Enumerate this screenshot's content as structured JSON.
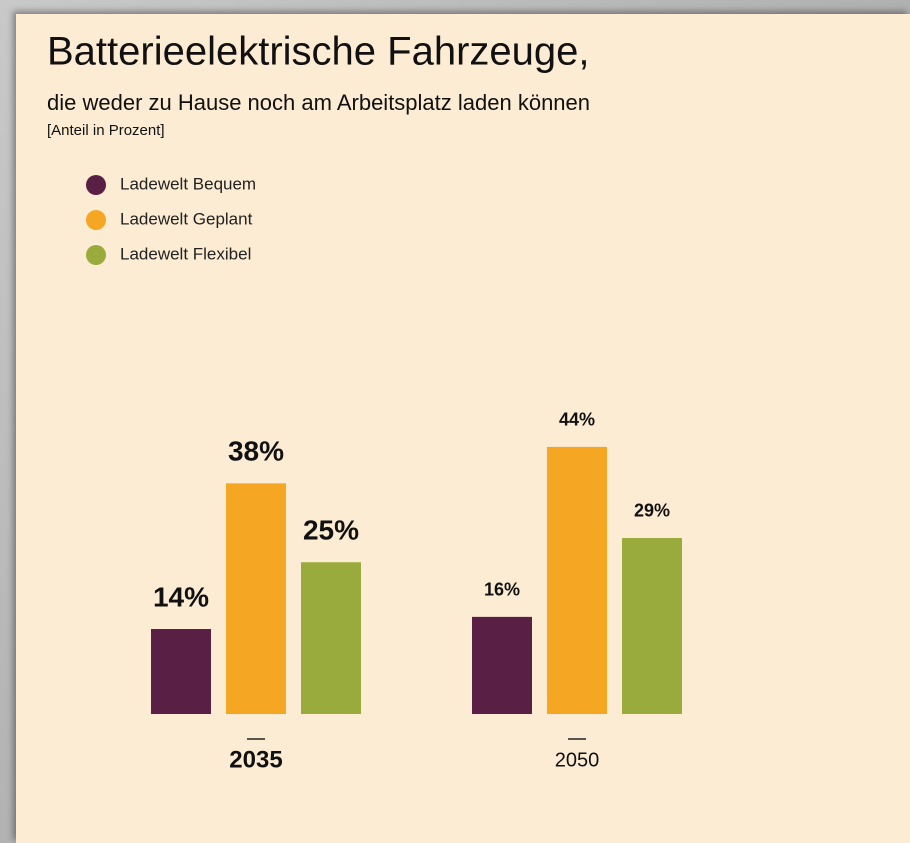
{
  "chart_data": {
    "type": "bar",
    "title": "Batterieelektrische Fahrzeuge,",
    "subtitle": "die weder zu Hause noch am Arbeitsplatz laden können",
    "note": "[Anteil in Prozent]",
    "categories": [
      "2035",
      "2050"
    ],
    "series": [
      {
        "name": "Ladewelt Bequem",
        "color": "#5a1f45",
        "values": [
          14,
          16
        ],
        "value_labels": [
          "14%",
          "16%"
        ]
      },
      {
        "name": "Ladewelt Geplant",
        "color": "#f5a623",
        "values": [
          38,
          44
        ],
        "value_labels": [
          "38%",
          "44%"
        ]
      },
      {
        "name": "Ladewelt Flexibel",
        "color": "#9aab3d",
        "values": [
          25,
          29
        ],
        "value_labels": [
          "25%",
          "29%"
        ]
      }
    ]
  }
}
